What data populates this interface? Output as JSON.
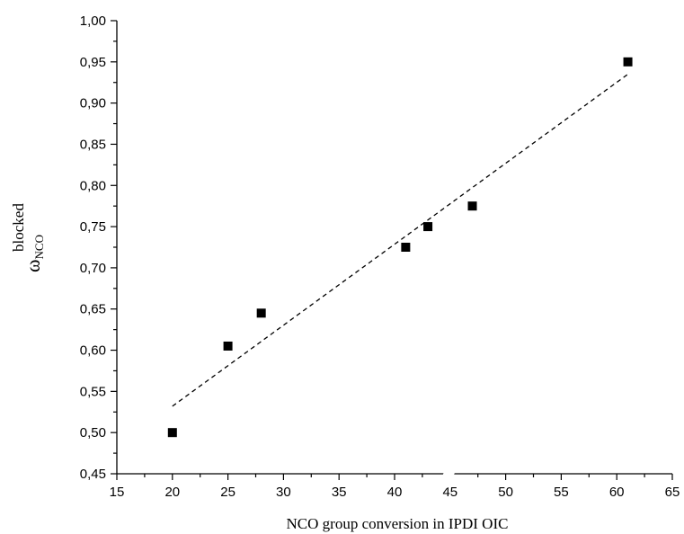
{
  "chart_data": {
    "type": "scatter",
    "xlabel": "NCO group conversion in IPDI OIC",
    "ylabel": "ω",
    "ylabel_sup": "blocked",
    "ylabel_sub": "NCO",
    "xlim": [
      15,
      65
    ],
    "ylim": [
      0.45,
      1.0
    ],
    "xticks": [
      "15",
      "20",
      "25",
      "30",
      "35",
      "40",
      "45",
      "50",
      "55",
      "60",
      "65"
    ],
    "yticks": [
      "0,45",
      "0,50",
      "0,55",
      "0,60",
      "0,65",
      "0,70",
      "0,75",
      "0,80",
      "0,85",
      "0,90",
      "0,95",
      "1,00"
    ],
    "grid": false,
    "series": [
      {
        "marker": "square",
        "color": "#000000",
        "points": [
          {
            "x": 20,
            "y": 0.5
          },
          {
            "x": 25,
            "y": 0.605
          },
          {
            "x": 28,
            "y": 0.645
          },
          {
            "x": 41,
            "y": 0.725
          },
          {
            "x": 43,
            "y": 0.75
          },
          {
            "x": 47,
            "y": 0.775
          },
          {
            "x": 61,
            "y": 0.95
          }
        ]
      }
    ],
    "trendline": {
      "style": "dashed",
      "color": "#000000",
      "points": [
        {
          "x": 20,
          "y": 0.532
        },
        {
          "x": 61,
          "y": 0.935
        }
      ]
    }
  }
}
